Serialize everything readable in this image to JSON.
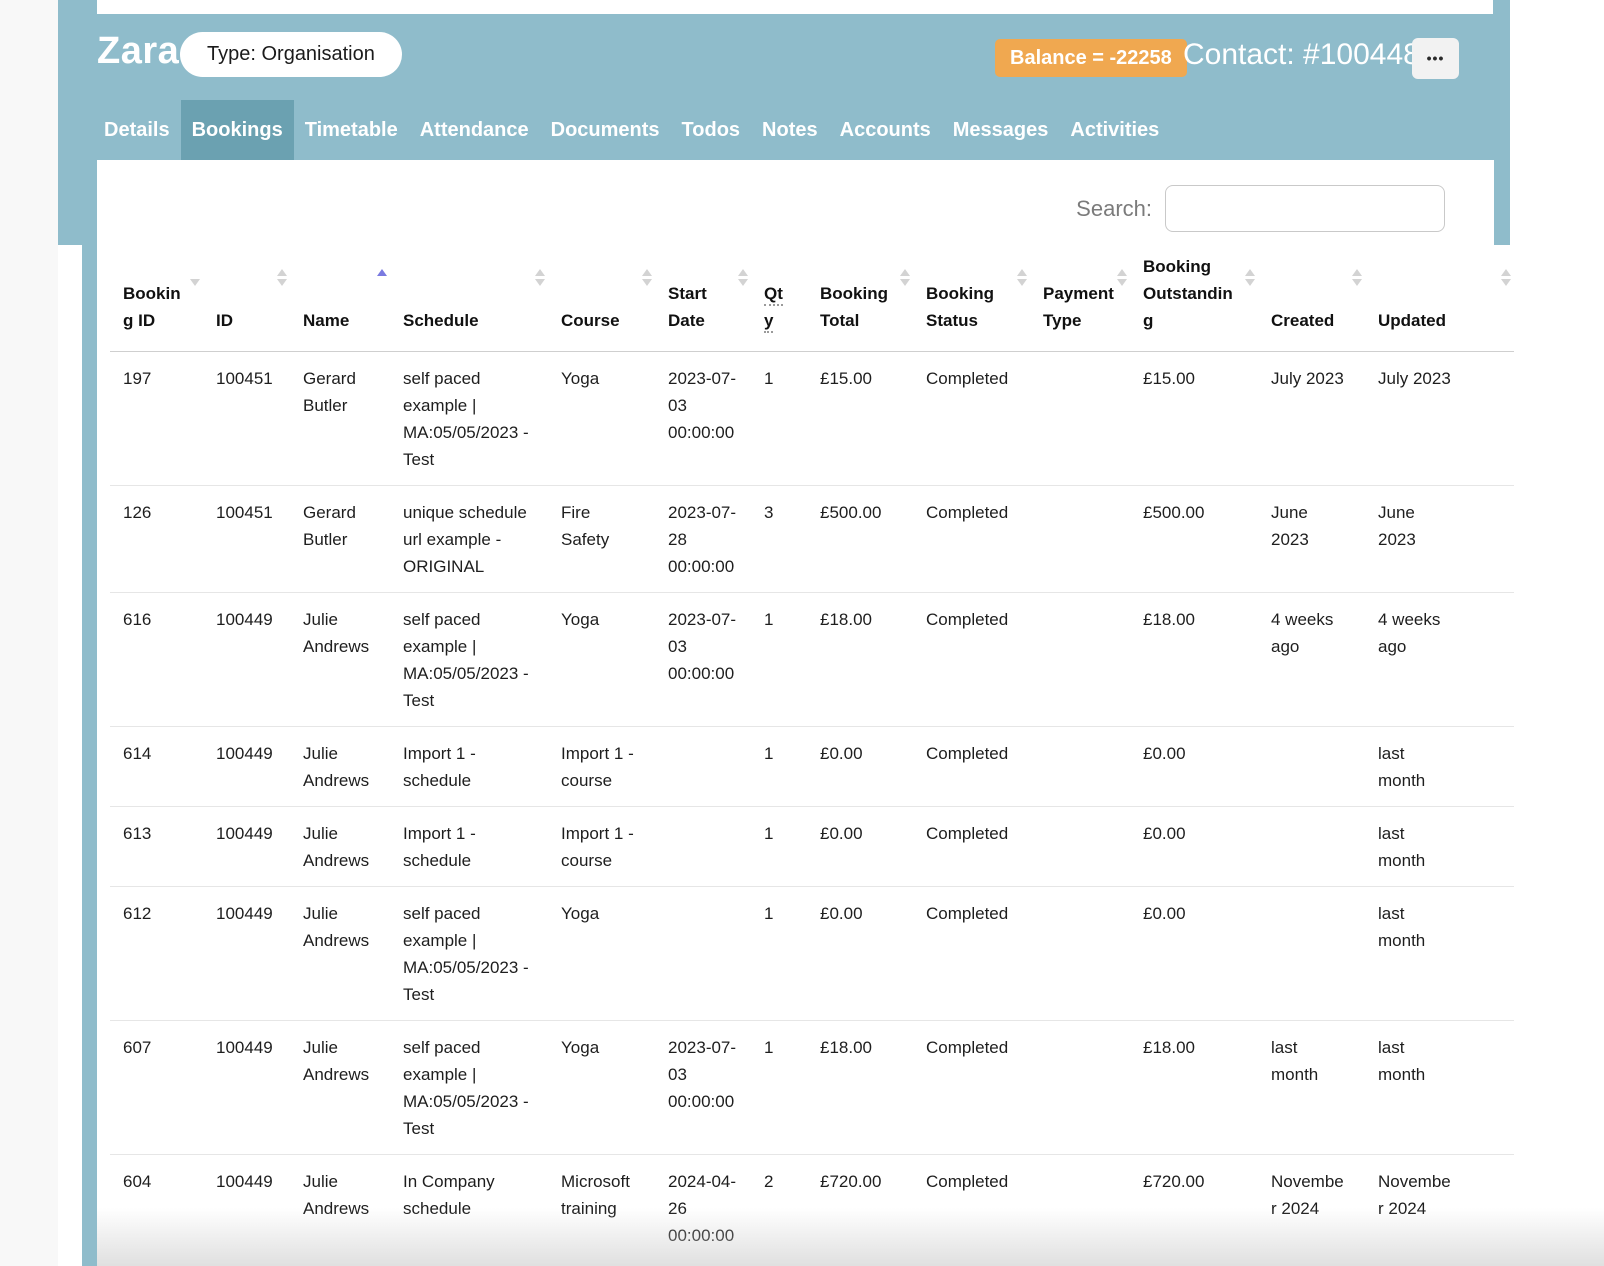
{
  "colors": {
    "teal_header": "#8fbccb",
    "teal_active_tab": "#6ba1b1",
    "balance_badge_orange": "#f0a850",
    "sort_active_arrow": "#7a7ae0"
  },
  "header": {
    "name": "Zara",
    "type_badge": "Type: Organisation",
    "balance_badge": "Balance = -22258",
    "contact_id": "Contact: #100448",
    "more_label": "•••"
  },
  "tabs": {
    "items": [
      {
        "label": "Details",
        "active": false
      },
      {
        "label": "Bookings",
        "active": true
      },
      {
        "label": "Timetable",
        "active": false
      },
      {
        "label": "Attendance",
        "active": false
      },
      {
        "label": "Documents",
        "active": false
      },
      {
        "label": "Todos",
        "active": false
      },
      {
        "label": "Notes",
        "active": false
      },
      {
        "label": "Accounts",
        "active": false
      },
      {
        "label": "Messages",
        "active": false
      },
      {
        "label": "Activities",
        "active": false
      }
    ]
  },
  "search": {
    "label": "Search:",
    "value": ""
  },
  "table": {
    "columns": [
      {
        "key": "bookingId",
        "label": "Booking ID",
        "sort": "down"
      },
      {
        "key": "id",
        "label": "ID",
        "sort": "both"
      },
      {
        "key": "name",
        "label": "Name",
        "sort": "asc"
      },
      {
        "key": "schedule",
        "label": "Schedule",
        "sort": "both"
      },
      {
        "key": "course",
        "label": "Course",
        "sort": "both"
      },
      {
        "key": "startDate",
        "label": "Start Date",
        "sort": "both"
      },
      {
        "key": "qty",
        "label": "Qty",
        "sort": "none"
      },
      {
        "key": "total",
        "label": "Booking Total",
        "sort": "both"
      },
      {
        "key": "status",
        "label": "Booking Status",
        "sort": "both"
      },
      {
        "key": "payment",
        "label": "Payment Type",
        "sort": "both"
      },
      {
        "key": "outstanding",
        "label": "Booking Outstanding",
        "sort": "both"
      },
      {
        "key": "created",
        "label": "Created",
        "sort": "both"
      },
      {
        "key": "updated",
        "label": "Updated",
        "sort": "both"
      }
    ],
    "rows": [
      {
        "bookingId": "197",
        "id": "100451",
        "name": "Gerard Butler",
        "schedule": "self paced example | MA:05/05/2023 - Test",
        "course": "Yoga",
        "startDate": "2023-07-03 00:00:00",
        "qty": "1",
        "total": "£15.00",
        "status": "Completed",
        "payment": "",
        "outstanding": "£15.00",
        "created": "July 2023",
        "updated": "July 2023"
      },
      {
        "bookingId": "126",
        "id": "100451",
        "name": "Gerard Butler",
        "schedule": "unique schedule url example - ORIGINAL",
        "course": "Fire Safety",
        "startDate": "2023-07-28 00:00:00",
        "qty": "3",
        "total": "£500.00",
        "status": "Completed",
        "payment": "",
        "outstanding": "£500.00",
        "created": "June 2023",
        "updated": "June 2023"
      },
      {
        "bookingId": "616",
        "id": "100449",
        "name": "Julie Andrews",
        "schedule": "self paced example | MA:05/05/2023 - Test",
        "course": "Yoga",
        "startDate": "2023-07-03 00:00:00",
        "qty": "1",
        "total": "£18.00",
        "status": "Completed",
        "payment": "",
        "outstanding": "£18.00",
        "created": "4 weeks ago",
        "updated": "4 weeks ago"
      },
      {
        "bookingId": "614",
        "id": "100449",
        "name": "Julie Andrews",
        "schedule": "Import 1 - schedule",
        "course": "Import 1 - course",
        "startDate": "",
        "qty": "1",
        "total": "£0.00",
        "status": "Completed",
        "payment": "",
        "outstanding": "£0.00",
        "created": "",
        "updated": "last month"
      },
      {
        "bookingId": "613",
        "id": "100449",
        "name": "Julie Andrews",
        "schedule": "Import 1 - schedule",
        "course": "Import 1 - course",
        "startDate": "",
        "qty": "1",
        "total": "£0.00",
        "status": "Completed",
        "payment": "",
        "outstanding": "£0.00",
        "created": "",
        "updated": "last month"
      },
      {
        "bookingId": "612",
        "id": "100449",
        "name": "Julie Andrews",
        "schedule": "self paced example | MA:05/05/2023 - Test",
        "course": "Yoga",
        "startDate": "",
        "qty": "1",
        "total": "£0.00",
        "status": "Completed",
        "payment": "",
        "outstanding": "£0.00",
        "created": "",
        "updated": "last month"
      },
      {
        "bookingId": "607",
        "id": "100449",
        "name": "Julie Andrews",
        "schedule": "self paced example | MA:05/05/2023 - Test",
        "course": "Yoga",
        "startDate": "2023-07-03 00:00:00",
        "qty": "1",
        "total": "£18.00",
        "status": "Completed",
        "payment": "",
        "outstanding": "£18.00",
        "created": "last month",
        "updated": "last month"
      },
      {
        "bookingId": "604",
        "id": "100449",
        "name": "Julie Andrews",
        "schedule": "In Company schedule",
        "course": "Microsoft training",
        "startDate": "2024-04-26 00:00:00",
        "qty": "2",
        "total": "£720.00",
        "status": "Completed",
        "payment": "",
        "outstanding": "£720.00",
        "created": "November 2024",
        "updated": "November 2024"
      }
    ]
  }
}
